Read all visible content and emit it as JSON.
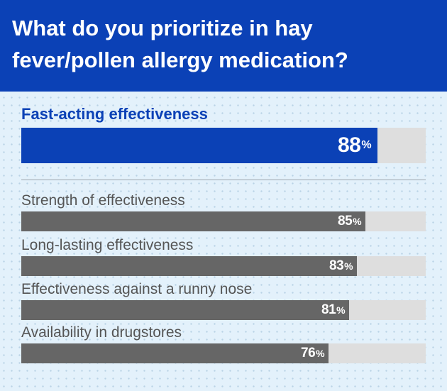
{
  "chart_data": {
    "type": "bar",
    "orientation": "horizontal",
    "title": "What do you prioritize in hay fever/pollen allergy medication?",
    "categories": [
      "Fast-acting effectiveness",
      "Strength of effectiveness",
      "Long-lasting effectiveness",
      "Effectiveness against a runny nose",
      "Availability in drugstores"
    ],
    "values": [
      88,
      85,
      83,
      81,
      76
    ],
    "unit": "%",
    "xlim": [
      0,
      100
    ],
    "highlight_index": 0
  },
  "colors": {
    "header": "#0b41b6",
    "highlight_bar": "#0b41b6",
    "bar": "#666666",
    "track": "#dedede",
    "background": "#e3f1fb"
  }
}
